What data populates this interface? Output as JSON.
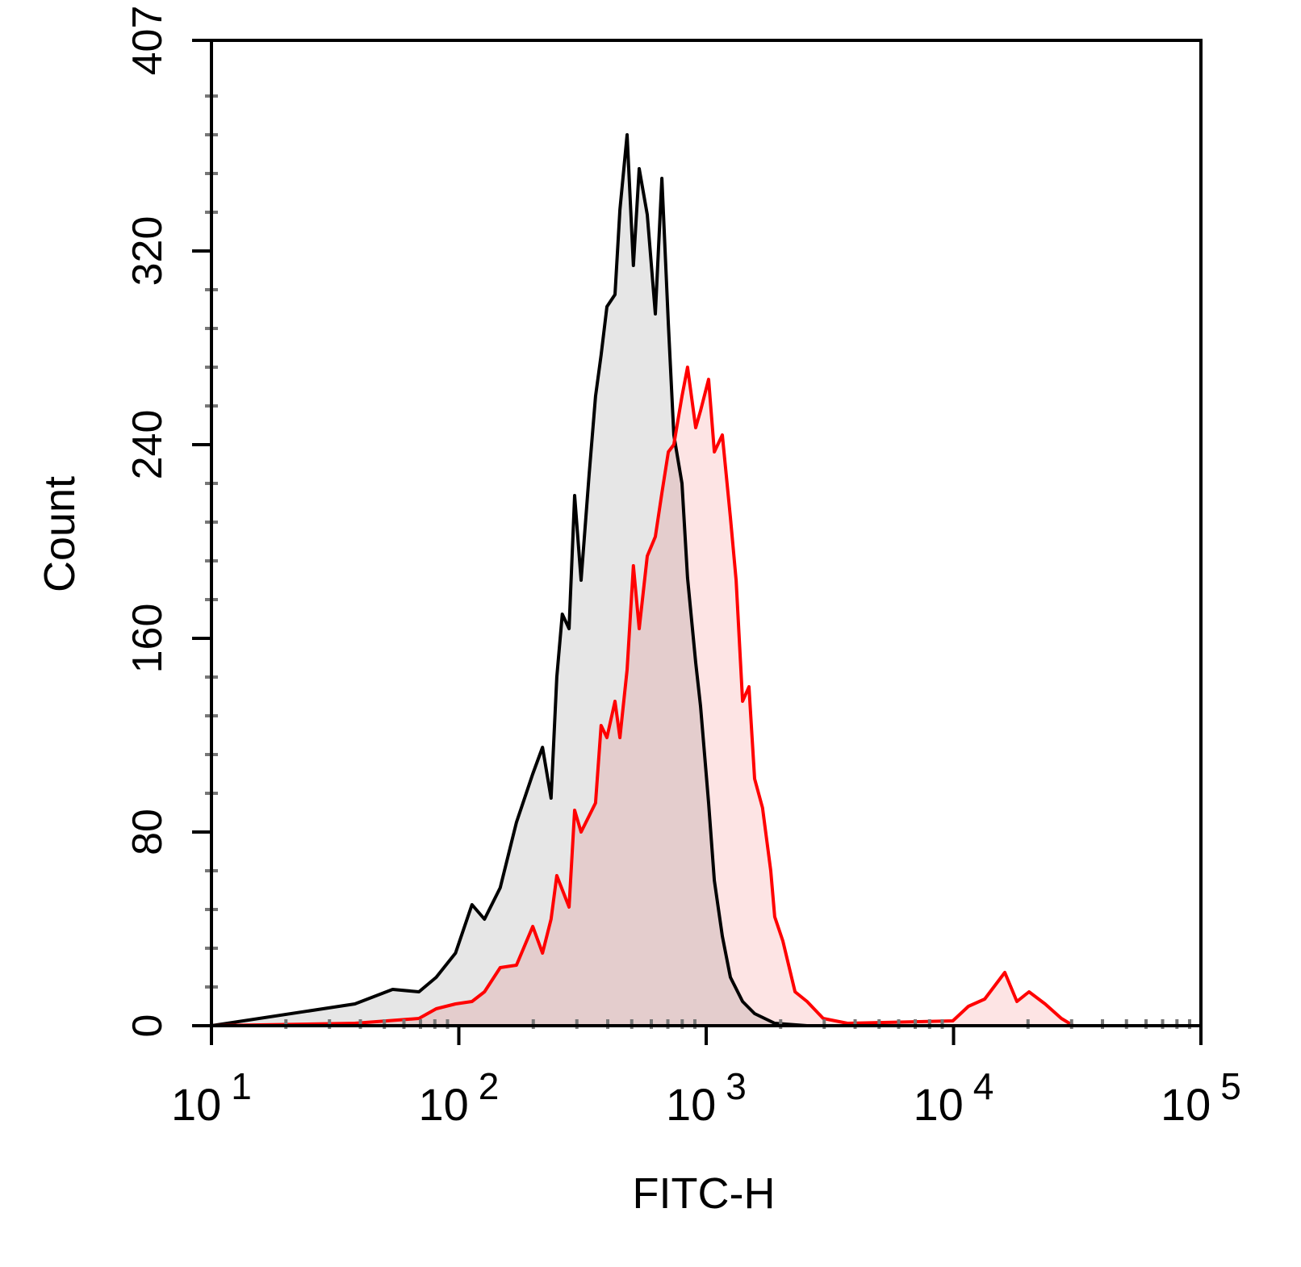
{
  "chart_data": {
    "type": "area",
    "title": "",
    "xlabel": "FITC-H",
    "ylabel": "Count",
    "xscale": "log",
    "xlim": [
      10,
      100000
    ],
    "ylim": [
      0,
      407
    ],
    "grid": false,
    "legend": "none",
    "y_ticks": [
      "0",
      "80",
      "160",
      "240",
      "320",
      "407"
    ],
    "y_tick_values": [
      0,
      80,
      160,
      240,
      320,
      407
    ],
    "x_ticks": [
      {
        "base": "10",
        "exp": "1",
        "value": 10
      },
      {
        "base": "10",
        "exp": "2",
        "value": 100
      },
      {
        "base": "10",
        "exp": "3",
        "value": 1000
      },
      {
        "base": "10",
        "exp": "4",
        "value": 10000
      },
      {
        "base": "10",
        "exp": "5",
        "value": 100000
      }
    ],
    "series": [
      {
        "color": "#000000",
        "fill": "#e6e6e6",
        "x": [
          10,
          38,
          54,
          69,
          81,
          97,
          113,
          127,
          147,
          171,
          199,
          218,
          236,
          249,
          262,
          279,
          294,
          312,
          336,
          357,
          376,
          397,
          428,
          448,
          479,
          508,
          536,
          578,
          623,
          662,
          703,
          740,
          798,
          841,
          907,
          949,
          1023,
          1079,
          1162,
          1253,
          1403,
          1570,
          1892,
          2557,
          100000
        ],
        "y": [
          0,
          9,
          15,
          14,
          20,
          30,
          50,
          44,
          57,
          84,
          104,
          115,
          94,
          144,
          170,
          164,
          219,
          184,
          227,
          260,
          277,
          297,
          302,
          337,
          368,
          314,
          354,
          335,
          294,
          350,
          290,
          244,
          224,
          185,
          150,
          132,
          92,
          60,
          37,
          20,
          10,
          5,
          1,
          0,
          0
        ]
      },
      {
        "color": "#ff0000",
        "fill": "#fde4e4",
        "x": [
          10,
          38,
          69,
          81,
          97,
          113,
          127,
          147,
          171,
          199,
          218,
          236,
          249,
          279,
          294,
          312,
          357,
          376,
          397,
          428,
          448,
          479,
          508,
          536,
          578,
          623,
          662,
          703,
          740,
          798,
          841,
          907,
          949,
          1023,
          1079,
          1162,
          1253,
          1321,
          1403,
          1489,
          1570,
          1690,
          1824,
          1892,
          2042,
          2286,
          2557,
          2973,
          3724,
          9936,
          11480,
          13360,
          16110,
          18030,
          20180,
          23450,
          27290,
          30500,
          100000
        ],
        "y": [
          0,
          1,
          3,
          7,
          9,
          10,
          14,
          24,
          25,
          41,
          30,
          44,
          62,
          49,
          89,
          80,
          92,
          124,
          119,
          134,
          119,
          147,
          190,
          164,
          194,
          202,
          220,
          237,
          240,
          260,
          272,
          247,
          254,
          267,
          237,
          244,
          210,
          184,
          134,
          140,
          102,
          90,
          64,
          45,
          35,
          14,
          10,
          3,
          1,
          2,
          8,
          11,
          22,
          10,
          14,
          9,
          3,
          0,
          0
        ]
      }
    ]
  }
}
